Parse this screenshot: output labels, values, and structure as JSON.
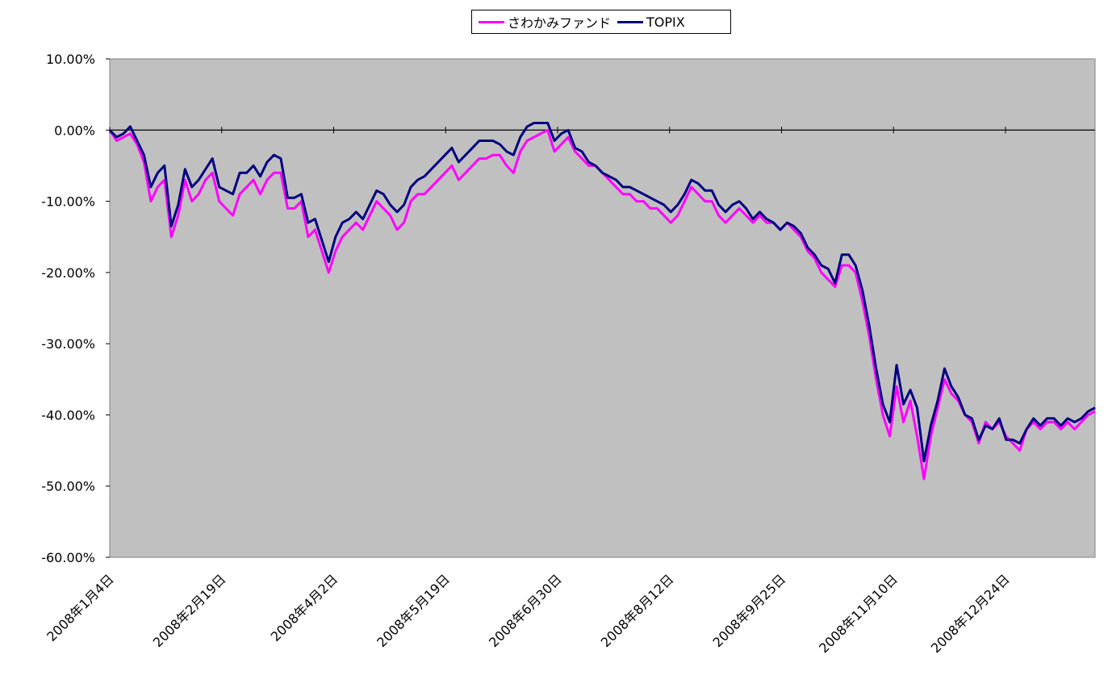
{
  "chart_data": {
    "type": "line",
    "title": "",
    "xlabel": "",
    "ylabel": "",
    "ylim": [
      -60,
      10
    ],
    "y_tick_labels": [
      "10.00%",
      "0.00%",
      "-10.00%",
      "-20.00%",
      "-30.00%",
      "-40.00%",
      "-50.00%",
      "-60.00%"
    ],
    "y_tick_values": [
      10,
      0,
      -10,
      -20,
      -30,
      -40,
      -50,
      -60
    ],
    "x_tick_labels": [
      "2008年1月4日",
      "2008年2月19日",
      "2008年4月2日",
      "2008年5月19日",
      "2008年6月30日",
      "2008年8月12日",
      "2008年9月25日",
      "2008年11月10日",
      "2008年12月24日"
    ],
    "grid": false,
    "legend_position": "top-center",
    "plot_background": "#c0c0c0",
    "series": [
      {
        "name": "さわかみファンド",
        "color": "#ff00ff",
        "values": [
          0,
          -1.5,
          -1,
          -0.5,
          -2,
          -4.5,
          -10,
          -8,
          -7,
          -15,
          -12,
          -7,
          -10,
          -9,
          -7,
          -6,
          -10,
          -11,
          -12,
          -9,
          -8,
          -7,
          -9,
          -7,
          -6,
          -6,
          -11,
          -11,
          -10,
          -15,
          -14,
          -17,
          -20,
          -17,
          -15,
          -14,
          -13,
          -14,
          -12,
          -10,
          -11,
          -12,
          -14,
          -13,
          -10,
          -9,
          -9,
          -8,
          -7,
          -6,
          -5,
          -7,
          -6,
          -5,
          -4,
          -4,
          -3.5,
          -3.5,
          -5,
          -6,
          -3,
          -1.5,
          -1,
          -0.5,
          0,
          -3,
          -2,
          -1,
          -3,
          -4,
          -5,
          -5,
          -6,
          -7,
          -8,
          -9,
          -9,
          -10,
          -10,
          -11,
          -11,
          -12,
          -13,
          -12,
          -10,
          -8,
          -9,
          -10,
          -10,
          -12,
          -13,
          -12,
          -11,
          -12,
          -13,
          -12,
          -13,
          -13,
          -14,
          -13,
          -14,
          -15,
          -17,
          -18,
          -20,
          -21,
          -22,
          -19,
          -19,
          -20,
          -24,
          -29,
          -35,
          -40,
          -43,
          -36,
          -41,
          -38,
          -43,
          -49,
          -43,
          -39,
          -35,
          -37,
          -38,
          -40,
          -41,
          -44,
          -41,
          -42,
          -41,
          -43,
          -44,
          -45,
          -42,
          -41,
          -42,
          -41,
          -41,
          -42,
          -41,
          -42,
          -41,
          -40,
          -39.5
        ]
      },
      {
        "name": "TOPIX",
        "color": "#000080",
        "values": [
          0,
          -1,
          -0.5,
          0.5,
          -1.5,
          -3.5,
          -8,
          -6,
          -5,
          -13.5,
          -10.5,
          -5.5,
          -8,
          -7,
          -5.5,
          -4,
          -8,
          -8.5,
          -9,
          -6,
          -6,
          -5,
          -6.5,
          -4.5,
          -3.5,
          -4,
          -9.5,
          -9.5,
          -9,
          -13,
          -12.5,
          -15.5,
          -18.5,
          -15,
          -13,
          -12.5,
          -11.5,
          -12.5,
          -10.5,
          -8.5,
          -9,
          -10.5,
          -11.5,
          -10.5,
          -8,
          -7,
          -6.5,
          -5.5,
          -4.5,
          -3.5,
          -2.5,
          -4.5,
          -3.5,
          -2.5,
          -1.5,
          -1.5,
          -1.5,
          -2,
          -3,
          -3.5,
          -1,
          0.5,
          1,
          1,
          1,
          -1.5,
          -0.5,
          0,
          -2.5,
          -3,
          -4.5,
          -5,
          -6,
          -6.5,
          -7,
          -8,
          -8,
          -8.5,
          -9,
          -9.5,
          -10,
          -10.5,
          -11.5,
          -10.5,
          -9,
          -7,
          -7.5,
          -8.5,
          -8.5,
          -10.5,
          -11.5,
          -10.5,
          -10,
          -11,
          -12.5,
          -11.5,
          -12.5,
          -13,
          -14,
          -13,
          -13.5,
          -14.5,
          -16.5,
          -17.5,
          -19,
          -19.5,
          -21.5,
          -17.5,
          -17.5,
          -19,
          -22.5,
          -27.5,
          -33.5,
          -38.5,
          -41,
          -33,
          -38.5,
          -36.5,
          -39,
          -46.5,
          -41.5,
          -38,
          -33.5,
          -36,
          -37.5,
          -40,
          -40.5,
          -43.5,
          -41.5,
          -42,
          -40.5,
          -43.5,
          -43.5,
          -44,
          -42,
          -40.5,
          -41.5,
          -40.5,
          -40.5,
          -41.5,
          -40.5,
          -41,
          -40.5,
          -39.5,
          -39
        ]
      }
    ]
  }
}
